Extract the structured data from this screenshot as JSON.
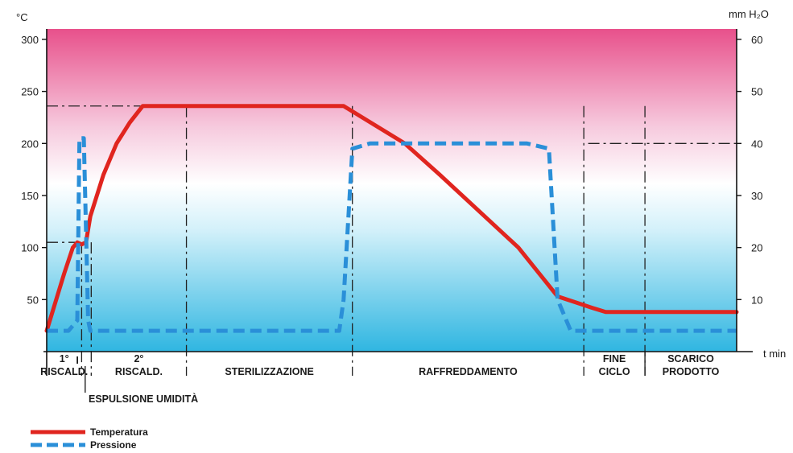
{
  "chart_data": {
    "type": "line",
    "ylabel_left": "°C",
    "ylabel_right": "mm H₂O",
    "xlabel": "t min",
    "ylim_left": [
      0,
      310
    ],
    "ylim_right": [
      0,
      62
    ],
    "yticks_left": [
      50,
      100,
      150,
      200,
      250,
      300
    ],
    "yticks_right": [
      10,
      20,
      30,
      40,
      50,
      60
    ],
    "background": {
      "top_color": "#e94f8c",
      "bottom_color": "#33b9e0"
    },
    "phases": [
      {
        "label": "RISCALD.",
        "sub": "1°"
      },
      {
        "label": "ESPULSIONE UMIDITÀ",
        "sub": ""
      },
      {
        "label": "RISCALD.",
        "sub": "2°"
      },
      {
        "label": "STERILIZZAZIONE",
        "sub": ""
      },
      {
        "label": "RAFFREDDAMENTO",
        "sub": ""
      },
      {
        "label": "FINE\nCICLO",
        "sub": ""
      },
      {
        "label": "SCARICO\nPRODOTTO",
        "sub": ""
      }
    ],
    "series": [
      {
        "name": "Temperatura",
        "axis": "left",
        "color": "#e0251f",
        "style": "solid",
        "x": [
          0,
          4,
          6,
          7,
          8,
          9,
          10,
          13,
          16,
          19,
          22,
          26,
          40,
          68,
          82,
          90,
          108,
          117,
          125,
          128,
          134,
          158
        ],
        "y": [
          20,
          75,
          100,
          105,
          103,
          105,
          130,
          170,
          200,
          220,
          236,
          236,
          236,
          236,
          200,
          170,
          100,
          53,
          42,
          38,
          38,
          38
        ]
      },
      {
        "name": "Pressione",
        "axis": "right",
        "color": "#2a8fd8",
        "style": "dashed",
        "x": [
          0,
          5,
          7,
          7.5,
          8.5,
          9.5,
          10,
          12,
          20,
          60,
          67,
          68,
          70,
          74,
          80,
          95,
          110,
          115,
          117,
          120,
          128,
          158
        ],
        "y": [
          4,
          4,
          6,
          41,
          41,
          6,
          4,
          4,
          4,
          4,
          4,
          10,
          39,
          40,
          40,
          40,
          40,
          39,
          10,
          4,
          4,
          4
        ]
      }
    ],
    "ref_lines_left": [
      236,
      105
    ],
    "ref_lines_right": [
      40
    ]
  },
  "legend": {
    "temp": "Temperatura",
    "press": "Pressione"
  }
}
